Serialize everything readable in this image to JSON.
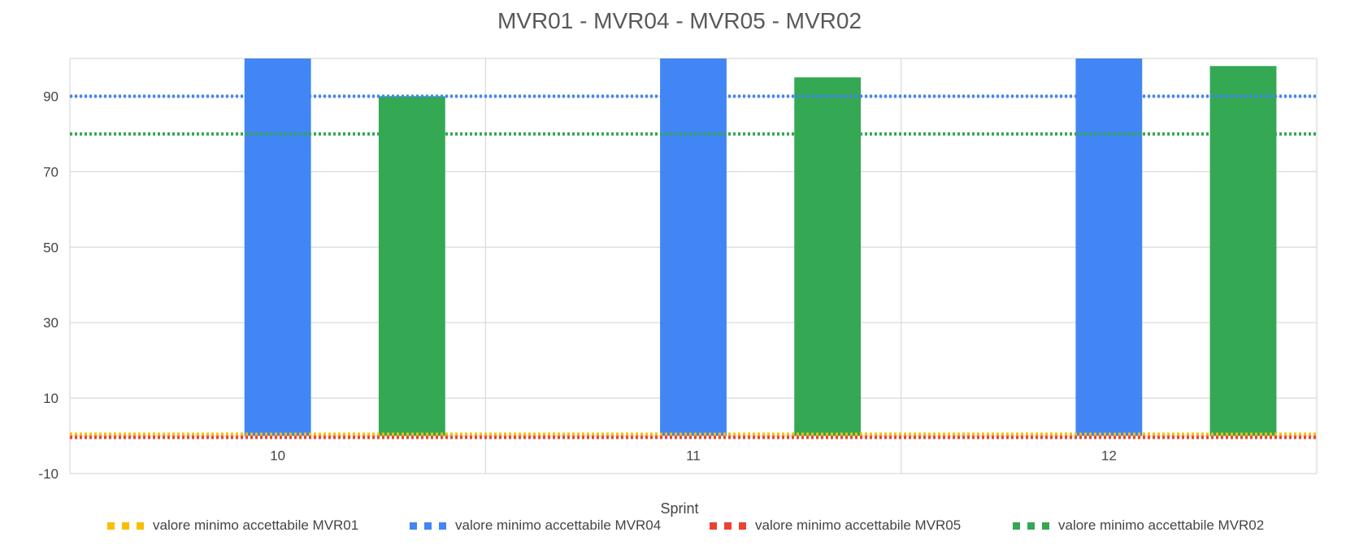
{
  "chart_data": {
    "type": "bar",
    "title": "MVR01 - MVR04 - MVR05 - MVR02",
    "xlabel": "Sprint",
    "ylabel": "",
    "categories": [
      "10",
      "11",
      "12"
    ],
    "ylim": [
      -10,
      100
    ],
    "yticks": [
      -10,
      10,
      30,
      50,
      70,
      90
    ],
    "grid": true,
    "legend_position": "bottom",
    "bar_series": [
      {
        "color": "#4285f4",
        "values": [
          100,
          100,
          100
        ]
      },
      {
        "color": "#34a853",
        "values": [
          90,
          95,
          98
        ]
      }
    ],
    "threshold_lines": [
      {
        "name": "valore minimo accettabile MVR01",
        "value": 0,
        "color": "#fbbc04"
      },
      {
        "name": "valore minimo accettabile MVR04",
        "value": 90,
        "color": "#4285f4"
      },
      {
        "name": "valore minimo accettabile MVR05",
        "value": 0,
        "color": "#ea4335"
      },
      {
        "name": "valore minimo accettabile MVR02",
        "value": 80,
        "color": "#34a853"
      }
    ]
  }
}
